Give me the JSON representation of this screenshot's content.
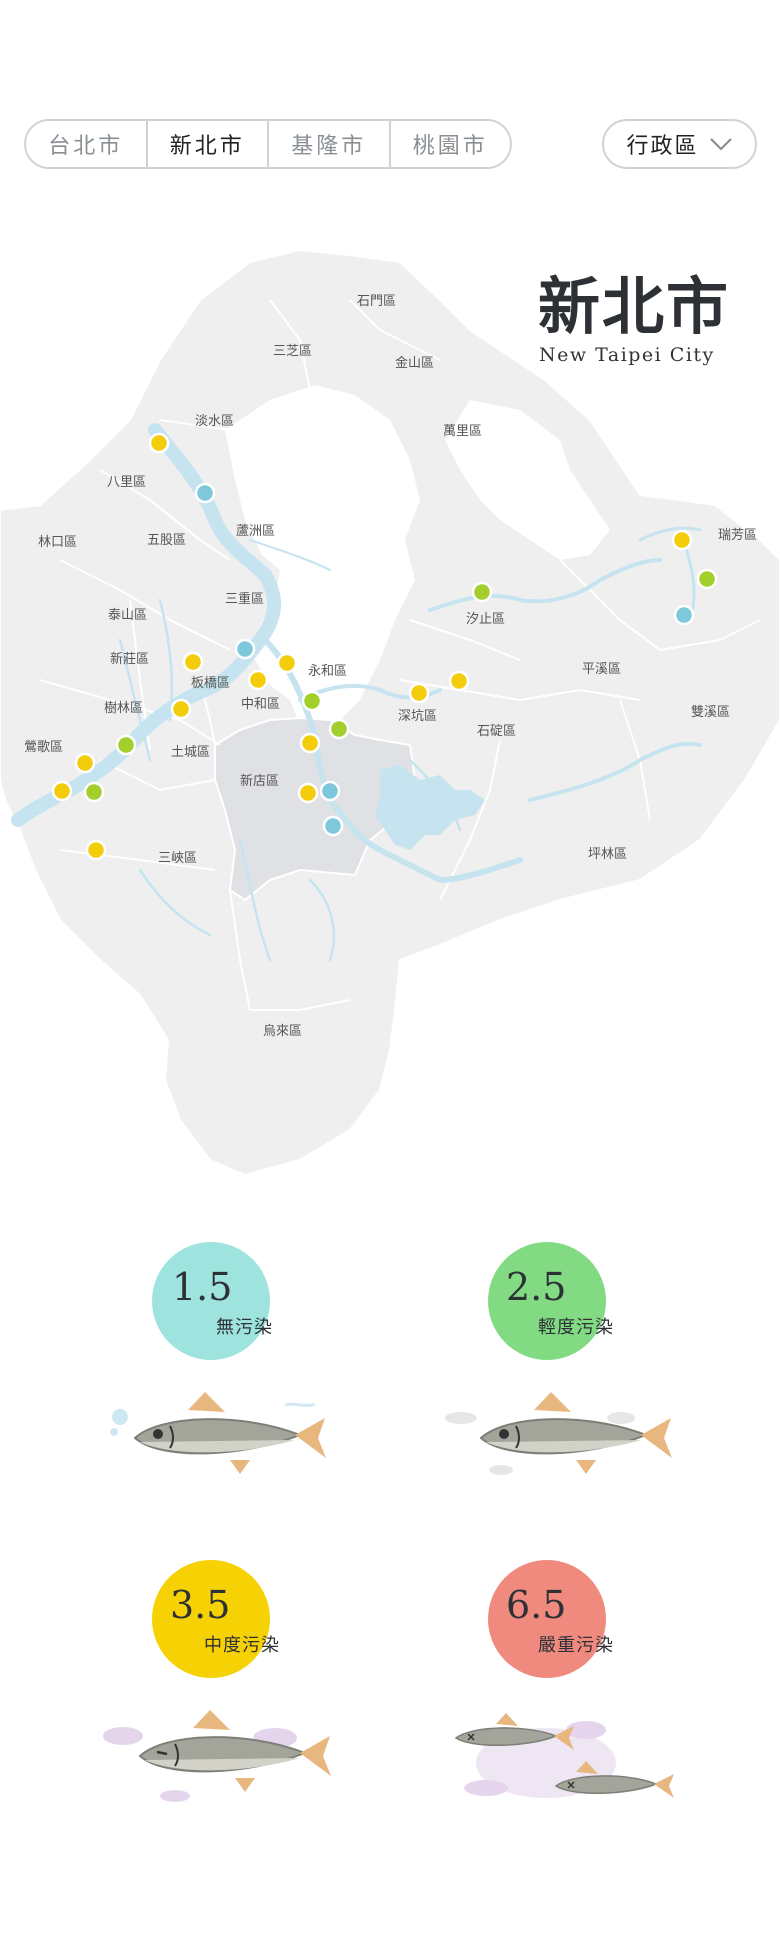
{
  "tabs": [
    {
      "label": "台北市",
      "active": false
    },
    {
      "label": "新北市",
      "active": true
    },
    {
      "label": "基隆市",
      "active": false
    },
    {
      "label": "桃園市",
      "active": false
    }
  ],
  "district_select": {
    "label": "行政區"
  },
  "city": {
    "name": "新北市",
    "name_en": "New Taipei City"
  },
  "districts": [
    "石門區",
    "三芝區",
    "金山區",
    "淡水區",
    "萬里區",
    "八里區",
    "林口區",
    "五股區",
    "蘆洲區",
    "瑞芳區",
    "泰山區",
    "三重區",
    "汐止區",
    "新莊區",
    "板橋區",
    "永和區",
    "平溪區",
    "樹林區",
    "中和區",
    "深坑區",
    "雙溪區",
    "鶯歌區",
    "土城區",
    "石碇區",
    "新店區",
    "三峽區",
    "坪林區",
    "烏來區"
  ],
  "legend": [
    {
      "score": "1.5",
      "label": "無污染",
      "color": "#9ee3de"
    },
    {
      "score": "2.5",
      "label": "輕度污染",
      "color": "#82da82"
    },
    {
      "score": "3.5",
      "label": "中度污染",
      "color": "#f6d104"
    },
    {
      "score": "6.5",
      "label": "嚴重污染",
      "color": "#f08a7f"
    }
  ],
  "colors": {
    "clean": "#7ec8dc",
    "light": "#a2cf2c",
    "moderate": "#f3cc0c",
    "river": "#c6e4f0",
    "land": "#efefef"
  }
}
